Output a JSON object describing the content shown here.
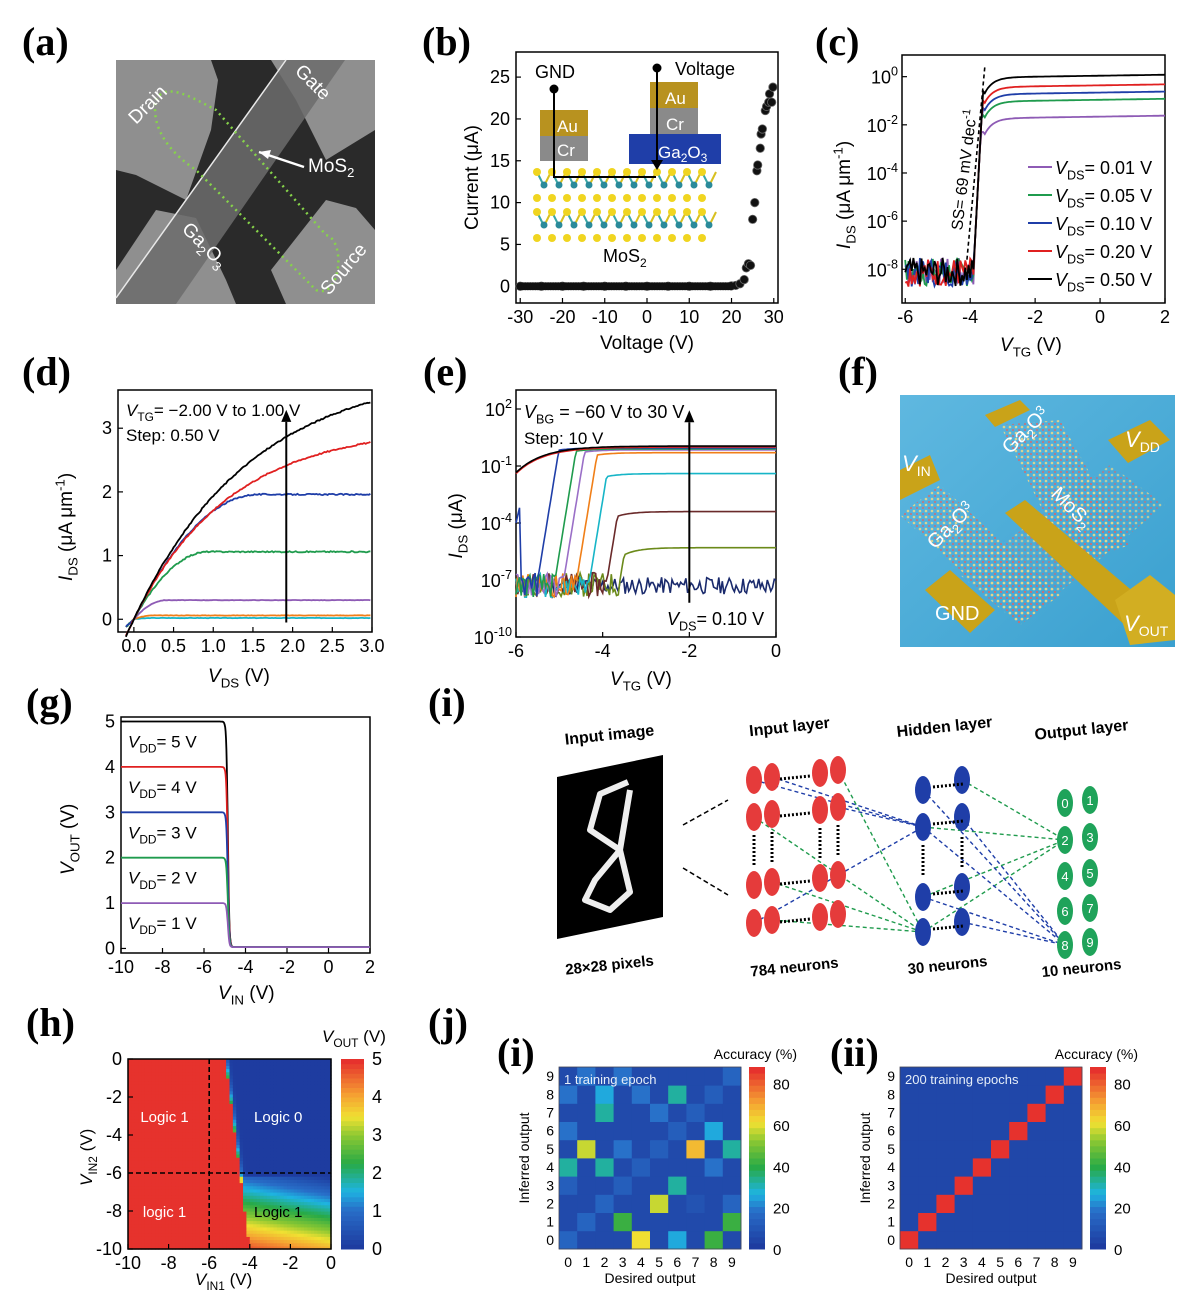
{
  "panels": {
    "a": {
      "label": "(a)",
      "type": "sem_image",
      "annotations": [
        "Drain",
        "Gate",
        "MoS2",
        "Ga2O3",
        "Source"
      ]
    },
    "b": {
      "label": "(b)"
    },
    "c": {
      "label": "(c)"
    },
    "d": {
      "label": "(d)"
    },
    "e": {
      "label": "(e)"
    },
    "f": {
      "label": "(f)",
      "type": "schematic_render",
      "annotations": [
        "VIN",
        "Ga2O3",
        "Ga2O3",
        "VDD",
        "MoS2",
        "GND",
        "VOUT"
      ]
    },
    "g": {
      "label": "(g)"
    },
    "h": {
      "label": "(h)"
    },
    "i": {
      "label": "(i)"
    },
    "j": {
      "label": "(j)",
      "sub_i": "(i)",
      "sub_ii": "(ii)"
    }
  },
  "text": {
    "a_drain": "Drain",
    "a_gate": "Gate",
    "a_mos2": "MoS",
    "a_sub2": "2",
    "a_ga": "Ga",
    "a_o": "O",
    "a_sub3": "3",
    "a_source": "Source",
    "b_gnd": "GND",
    "b_voltage": "Voltage",
    "b_au": "Au",
    "b_cr": "Cr",
    "b_ga2o3": "Ga",
    "b_mos2": "MoS",
    "c_ss": "SS= 69 mV dec",
    "f_vin": "V",
    "f_in": "IN",
    "f_vdd": "V",
    "f_dd": "DD",
    "f_vout": "V",
    "f_out": "OUT",
    "f_gnd": "GND",
    "f_ga": "Ga",
    "f_mos": "MoS",
    "i_input_image": "Input image",
    "i_input_layer": "Input layer",
    "i_hidden_layer": "Hidden layer",
    "i_output_layer": "Output layer",
    "i_pixels": "28×28 pixels",
    "i_784": "784 neurons",
    "i_30": "30 neurons",
    "i_10": "10 neurons",
    "h_logic1a": "Logic 1",
    "h_logic0": "Logic 0",
    "h_logic1b": "logic 1",
    "h_logic1c": "Logic 1",
    "j1_note": "1 training epoch",
    "j2_note": "200 training epochs",
    "acc_label": "Accuracy (%)",
    "desired": "Desired output",
    "inferred": "Inferred output"
  },
  "chart_data": [
    {
      "id": "b",
      "type": "scatter",
      "xlabel": "Voltage (V)",
      "ylabel": "Current (μA)",
      "xlim": [
        -31,
        31
      ],
      "ylim": [
        -2,
        28
      ],
      "xticks": [
        -30,
        -20,
        -10,
        0,
        10,
        20,
        30
      ],
      "yticks": [
        0,
        5,
        10,
        15,
        20,
        25
      ],
      "points": [
        [
          -30,
          0
        ],
        [
          -25,
          0
        ],
        [
          -20,
          0
        ],
        [
          -15,
          0
        ],
        [
          -10,
          0
        ],
        [
          -5,
          0
        ],
        [
          0,
          0
        ],
        [
          5,
          0
        ],
        [
          10,
          0
        ],
        [
          15,
          0
        ],
        [
          20,
          0.05
        ],
        [
          21,
          0.1
        ],
        [
          22,
          0.3
        ],
        [
          23,
          0.8
        ],
        [
          23.5,
          2.2
        ],
        [
          24,
          2.7
        ],
        [
          24.5,
          2.5
        ],
        [
          25,
          8
        ],
        [
          25.5,
          10
        ],
        [
          26,
          13.8
        ],
        [
          26.2,
          14.5
        ],
        [
          26.8,
          16.5
        ],
        [
          27,
          18.2
        ],
        [
          27.3,
          18.8
        ],
        [
          28,
          21
        ],
        [
          28.3,
          21.5
        ],
        [
          28.8,
          22
        ],
        [
          29,
          23
        ],
        [
          29.5,
          22
        ],
        [
          29.8,
          23.8
        ]
      ]
    },
    {
      "id": "c",
      "type": "line",
      "yscale": "log",
      "xlabel": "V_TG (V)",
      "ylabel": "I_DS (μA μm^-1)",
      "xlim": [
        -6.1,
        2
      ],
      "ylim_log10": [
        -9.4,
        0.9
      ],
      "xticks": [
        -6,
        -4,
        -2,
        0,
        2
      ],
      "yticks_log10": [
        0,
        -2,
        -4,
        -6,
        -8
      ],
      "ytick_labels": [
        "10^0",
        "10^-2",
        "10^-4",
        "10^-6",
        "10^-8"
      ],
      "annotation": "SS= 69 mV dec^-1",
      "series": [
        {
          "name": "V_DS= 0.01 V",
          "color": "#8e5bb5",
          "on_log10": -1.7
        },
        {
          "name": "V_DS= 0.05 V",
          "color": "#1f9b4d",
          "on_log10": -1.0
        },
        {
          "name": "V_DS= 0.10 V",
          "color": "#1f3ea8",
          "on_log10": -0.7
        },
        {
          "name": "V_DS= 0.20 V",
          "color": "#e02020",
          "on_log10": -0.4
        },
        {
          "name": "V_DS= 0.50 V",
          "color": "#000000",
          "on_log10": 0.0
        }
      ],
      "legend": "bottom-right",
      "off_level_log10": -8,
      "threshold_V": -3.9
    },
    {
      "id": "d",
      "type": "line",
      "xlabel": "V_DS (V)",
      "ylabel": "I_DS (μA μm^-1)",
      "xlim": [
        -0.2,
        3.0
      ],
      "ylim": [
        -0.2,
        3.6
      ],
      "xticks": [
        0.0,
        0.5,
        1.0,
        1.5,
        2.0,
        2.5,
        3.0
      ],
      "yticks": [
        0,
        1,
        2,
        3
      ],
      "annotation": "V_TG= −2.00 V to 1.00 V",
      "annotation2": "Step: 0.50 V",
      "series": [
        {
          "name": "V_TG=-2.00 V",
          "color": "#17b5c7",
          "sat": 0.02
        },
        {
          "name": "V_TG=-1.50 V",
          "color": "#f07f18",
          "sat": 0.06
        },
        {
          "name": "V_TG=-1.00 V",
          "color": "#8e5bb5",
          "sat": 0.3
        },
        {
          "name": "V_TG=-0.50 V",
          "color": "#1f9b4d",
          "sat": 1.06
        },
        {
          "name": "V_TG=0.00 V",
          "color": "#1f3ea8",
          "sat": 1.96
        },
        {
          "name": "V_TG=0.50 V",
          "color": "#e02020",
          "sat": 2.78
        },
        {
          "name": "V_TG=1.00 V",
          "color": "#000000",
          "sat": 3.42
        }
      ]
    },
    {
      "id": "e",
      "type": "line",
      "yscale": "log",
      "xlabel": "V_TG (V)",
      "ylabel": "I_DS (μA)",
      "xlim": [
        -6,
        0
      ],
      "ylim_log10": [
        -10,
        3
      ],
      "xticks": [
        -6,
        -4,
        -2,
        0
      ],
      "yticks_log10": [
        2,
        -1,
        -4,
        -7,
        -10
      ],
      "ytick_labels": [
        "10^2",
        "10^-1",
        "10^-4",
        "10^-7",
        "10^-10"
      ],
      "annotation": "V_BG = −60 V to 30 V",
      "annotation2": "Step: 10 V",
      "annotation3": "V_DS= 0.10 V",
      "series": [
        {
          "name": "V_BG=-60 V",
          "color": "#1a2a6c",
          "on_log10": -7.3,
          "vth": 1
        },
        {
          "name": "V_BG=-50 V",
          "color": "#6b8a1a",
          "on_log10": -5.3,
          "vth": -3.6
        },
        {
          "name": "V_BG=-40 V",
          "color": "#6a2a2a",
          "on_log10": -3.4,
          "vth": -3.9
        },
        {
          "name": "V_BG=-30 V",
          "color": "#17b5c7",
          "on_log10": -1.4,
          "vth": -4.3
        },
        {
          "name": "V_BG=-20 V",
          "color": "#f07f18",
          "on_log10": -0.3,
          "vth": -4.6
        },
        {
          "name": "V_BG=-10 V",
          "color": "#9a6fc7",
          "on_log10": -0.15,
          "vth": -4.9
        },
        {
          "name": "V_BG=0 V",
          "color": "#1f9b4d",
          "on_log10": -0.1,
          "vth": -5.1
        },
        {
          "name": "V_BG=10 V",
          "color": "#1f3ea8",
          "on_log10": -0.05,
          "vth": -5.5
        },
        {
          "name": "V_BG=20 V",
          "color": "#e02020",
          "on_log10": 0.0,
          "vth": -6.0
        },
        {
          "name": "V_BG=30 V",
          "color": "#000000",
          "on_log10": 0.05,
          "vth": -6.5
        }
      ]
    },
    {
      "id": "g",
      "type": "line",
      "xlabel": "V_IN (V)",
      "ylabel": "V_OUT (V)",
      "xlim": [
        -10,
        2
      ],
      "ylim": [
        -0.1,
        5.1
      ],
      "xticks": [
        -10,
        -8,
        -6,
        -4,
        -2,
        0,
        2
      ],
      "yticks": [
        0,
        1,
        2,
        3,
        4,
        5
      ],
      "switch_V": -4.85,
      "series": [
        {
          "name": "V_DD= 5 V",
          "color": "#000000",
          "vdd": 5
        },
        {
          "name": "V_DD= 4 V",
          "color": "#e02020",
          "vdd": 4
        },
        {
          "name": "V_DD= 3 V",
          "color": "#1f3ea8",
          "vdd": 3
        },
        {
          "name": "V_DD= 2 V",
          "color": "#1f9b4d",
          "vdd": 2
        },
        {
          "name": "V_DD= 1 V",
          "color": "#8e5bb5",
          "vdd": 1
        }
      ]
    },
    {
      "id": "h",
      "type": "heatmap",
      "xlabel": "V_IN1 (V)",
      "ylabel": "V_IN2 (V)",
      "colorbar_label": "V_OUT (V)",
      "xlim": [
        -10,
        0
      ],
      "ylim": [
        -10,
        0
      ],
      "xticks": [
        -10,
        -8,
        -6,
        -4,
        -2,
        0
      ],
      "yticks": [
        0,
        -2,
        -4,
        -6,
        -8,
        -10
      ],
      "colorbar_ticks": [
        0,
        1,
        2,
        3,
        4,
        5
      ],
      "regions": [
        {
          "label": "Logic 1",
          "x": -8.2,
          "y": -3,
          "value": 5
        },
        {
          "label": "Logic 0",
          "x": -2.6,
          "y": -3,
          "value": 0
        },
        {
          "label": "logic 1",
          "x": -8.2,
          "y": -8,
          "value": 5
        },
        {
          "label": "Logic 1",
          "x": -2.6,
          "y": -8,
          "value": 3
        }
      ],
      "guide_lines": {
        "x": -6,
        "y": -6
      }
    },
    {
      "id": "j_i",
      "type": "heatmap",
      "title": "1 training epoch",
      "xlabel": "Desired output",
      "ylabel": "Inferred output",
      "colorbar_label": "Accuracy (%)",
      "categories": [
        "0",
        "1",
        "2",
        "3",
        "4",
        "5",
        "6",
        "7",
        "8",
        "9"
      ],
      "colorbar_ticks": [
        0,
        20,
        40,
        60,
        80
      ],
      "vmax": 88,
      "matrix_rows_inferred_0_to_9": [
        [
          14,
          5,
          5,
          5,
          62,
          5,
          25,
          5,
          42,
          5
        ],
        [
          5,
          14,
          5,
          42,
          5,
          5,
          5,
          5,
          5,
          42
        ],
        [
          5,
          5,
          14,
          5,
          5,
          58,
          5,
          8,
          5,
          14
        ],
        [
          12,
          5,
          5,
          12,
          5,
          5,
          32,
          5,
          5,
          5
        ],
        [
          32,
          5,
          32,
          5,
          12,
          5,
          5,
          5,
          18,
          5
        ],
        [
          5,
          58,
          5,
          18,
          5,
          12,
          5,
          68,
          5,
          32
        ],
        [
          18,
          5,
          5,
          5,
          5,
          5,
          12,
          5,
          25,
          5
        ],
        [
          5,
          5,
          32,
          5,
          5,
          18,
          5,
          12,
          5,
          5
        ],
        [
          18,
          5,
          25,
          5,
          18,
          5,
          32,
          5,
          12,
          5
        ],
        [
          5,
          18,
          5,
          18,
          5,
          5,
          5,
          5,
          5,
          14
        ]
      ]
    },
    {
      "id": "j_ii",
      "type": "heatmap",
      "title": "200 training epochs",
      "xlabel": "Desired output",
      "ylabel": "Inferred output",
      "colorbar_label": "Accuracy (%)",
      "categories": [
        "0",
        "1",
        "2",
        "3",
        "4",
        "5",
        "6",
        "7",
        "8",
        "9"
      ],
      "colorbar_ticks": [
        0,
        20,
        40,
        60,
        80
      ],
      "vmax": 88,
      "diagonal_value": 88,
      "off_diagonal_value": 4
    }
  ],
  "nn": {
    "output_digits": [
      "0",
      "1",
      "2",
      "3",
      "4",
      "5",
      "6",
      "7",
      "8",
      "9"
    ]
  }
}
